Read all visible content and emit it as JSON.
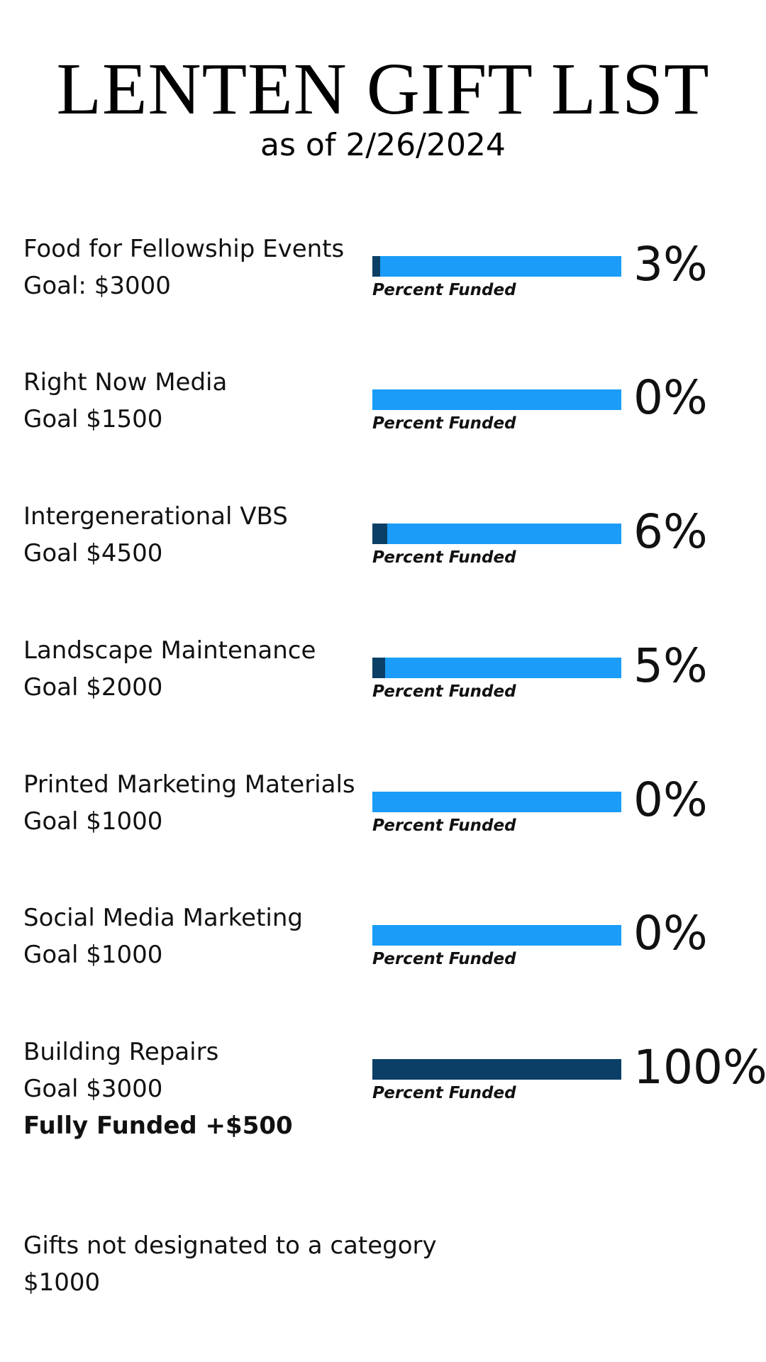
{
  "header": {
    "title": "LENTEN GIFT LIST",
    "subtitle": "as of 2/26/2024"
  },
  "bar_caption": "Percent Funded",
  "colors": {
    "bar_track": "#1a9cf8",
    "bar_fill": "#0b3f66"
  },
  "items": [
    {
      "name": "Food for Fellowship Events",
      "goal": "Goal: $3000",
      "note": "",
      "percent_label": "3%",
      "percent": 3
    },
    {
      "name": "Right Now Media",
      "goal": "Goal $1500",
      "note": "",
      "percent_label": "0%",
      "percent": 0
    },
    {
      "name": "Intergenerational VBS",
      "goal": "Goal $4500",
      "note": "",
      "percent_label": "6%",
      "percent": 6
    },
    {
      "name": "Landscape Maintenance",
      "goal": "Goal $2000",
      "note": "",
      "percent_label": "5%",
      "percent": 5
    },
    {
      "name": "Printed Marketing Materials",
      "goal": "Goal $1000",
      "note": "",
      "percent_label": "0%",
      "percent": 0
    },
    {
      "name": "Social Media Marketing",
      "goal": "Goal $1000",
      "note": "",
      "percent_label": "0%",
      "percent": 0
    },
    {
      "name": "Building Repairs",
      "goal": "Goal $3000",
      "note": "Fully Funded +$500",
      "percent_label": "100%",
      "percent": 100
    }
  ],
  "undesignated": {
    "label": "Gifts not designated to a category",
    "amount": "$1000"
  }
}
